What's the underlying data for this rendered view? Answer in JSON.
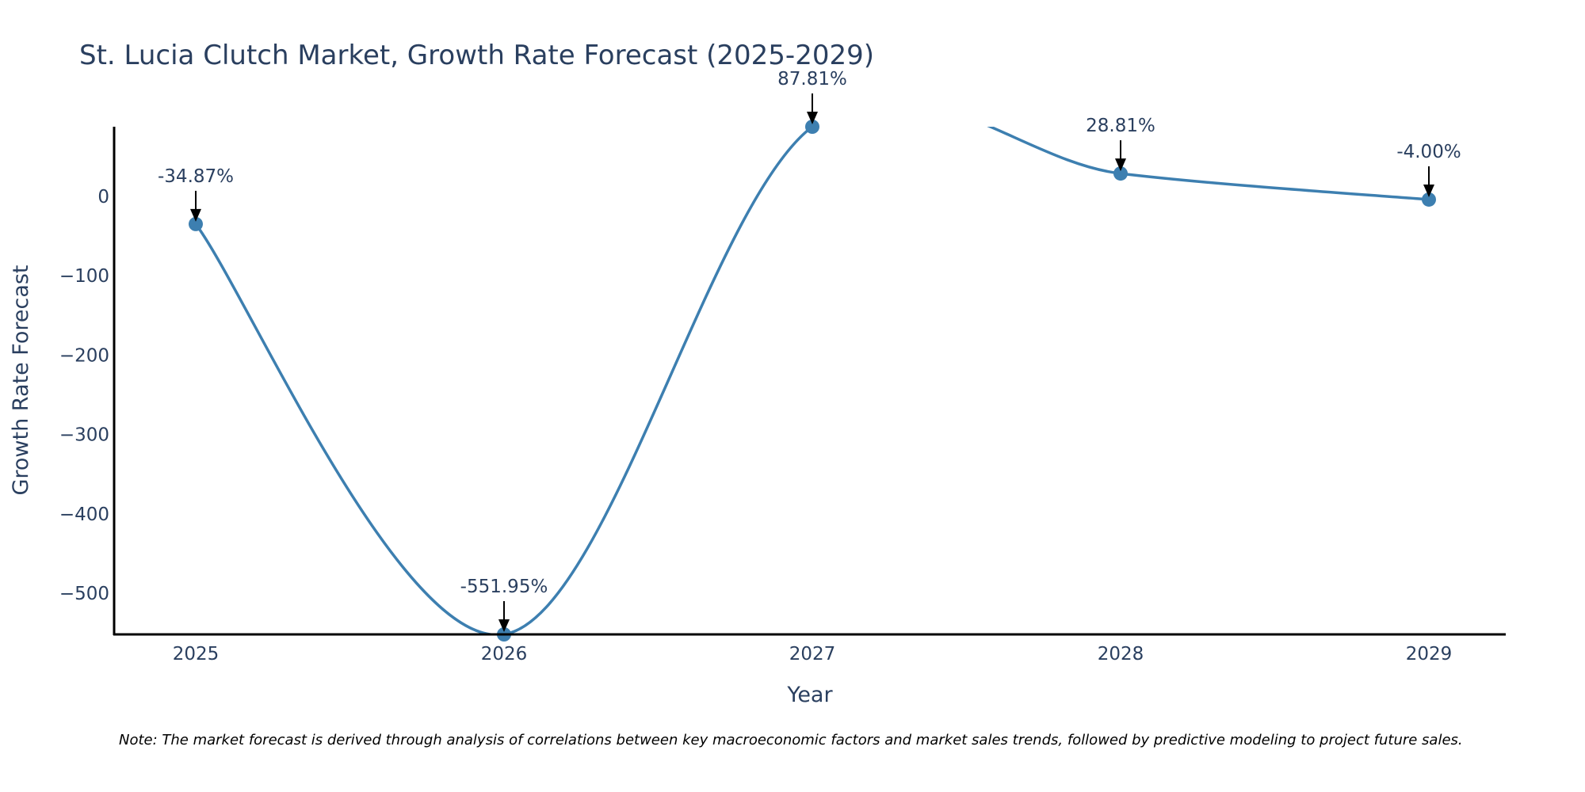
{
  "chart_data": {
    "type": "line",
    "title": "St. Lucia Clutch Market, Growth Rate Forecast (2025-2029)",
    "xlabel": "Year",
    "ylabel": "Growth Rate Forecast",
    "categories": [
      "2025",
      "2026",
      "2027",
      "2028",
      "2029"
    ],
    "series": [
      {
        "name": "Growth Rate Forecast",
        "values": [
          -34.87,
          -551.95,
          87.81,
          28.81,
          -4.0
        ]
      }
    ],
    "data_labels": [
      "-34.87%",
      "-551.95%",
      "87.81%",
      "28.81%",
      "-4.00%"
    ],
    "y_ticks": [
      0,
      -100,
      -200,
      -300,
      -400,
      -500
    ],
    "y_tick_labels": [
      "0",
      "−100",
      "−200",
      "−300",
      "−400",
      "−500"
    ],
    "ylim": [
      -551.95,
      87.81
    ],
    "grid": false,
    "line_shape": "spline",
    "colors": {
      "line": "#3d7fb0",
      "marker": "#3d7fb0",
      "axis": "#000000",
      "text": "#2a3f5f",
      "arrow": "#000000"
    },
    "note": "Note: The market forecast is derived through analysis of correlations between key macroeconomic factors and market sales trends, followed by predictive modeling to project future sales."
  }
}
